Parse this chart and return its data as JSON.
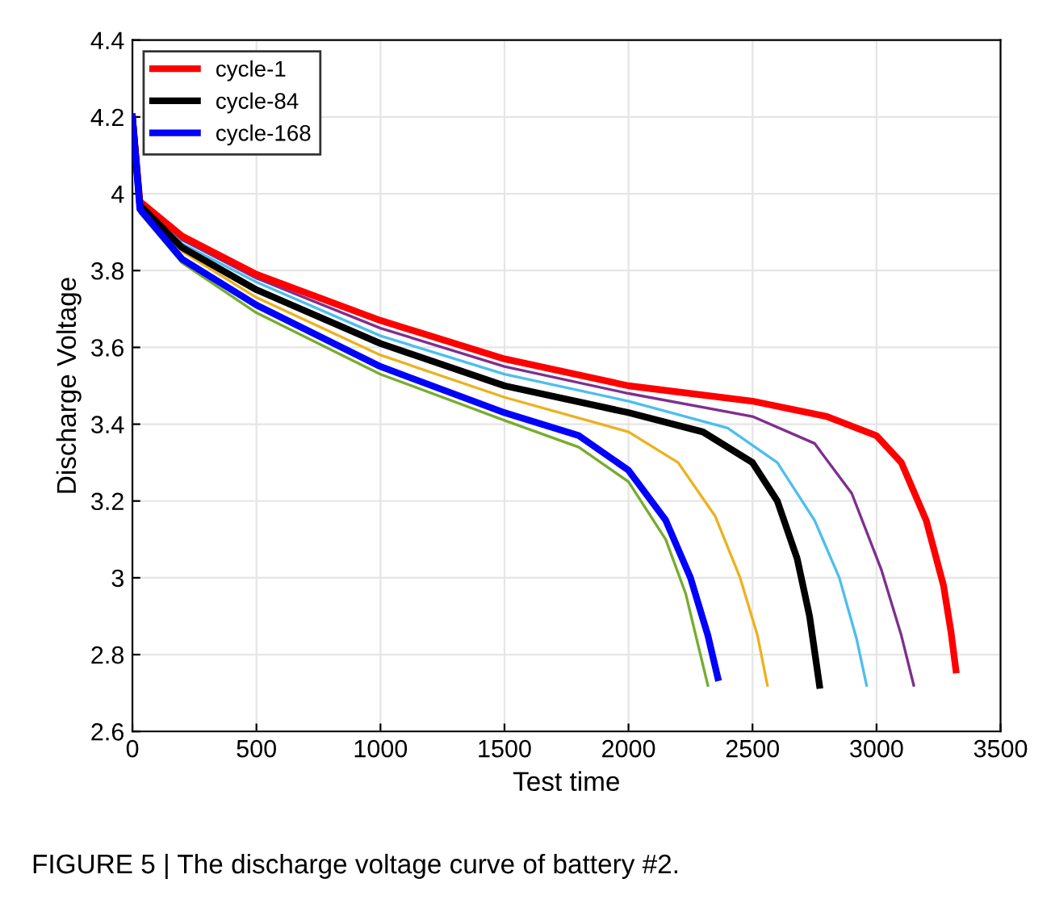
{
  "chart_data": {
    "type": "line",
    "xlabel": "Test time",
    "ylabel": "Discharge Voltage",
    "xlim": [
      0,
      3500
    ],
    "xticks": [
      0,
      500,
      1000,
      1500,
      2000,
      2500,
      3000,
      3500
    ],
    "ylim": [
      2.6,
      4.4
    ],
    "yticks": [
      2.6,
      2.8,
      3,
      3.2,
      3.4,
      3.6,
      3.8,
      4,
      4.2,
      4.4
    ],
    "grid": true,
    "legend": "top left",
    "line_style": "solid",
    "marker": "none",
    "annotations": [
      "FIGURE 5 | The discharge voltage curve of battery #2."
    ],
    "series": [
      {
        "color": "#77ac30",
        "x": [
          0,
          30,
          200,
          500,
          1000,
          1500,
          1800,
          2000,
          2150,
          2230,
          2290,
          2320
        ],
        "values": [
          4.2,
          3.95,
          3.82,
          3.69,
          3.53,
          3.41,
          3.34,
          3.25,
          3.1,
          2.96,
          2.8,
          2.72
        ]
      },
      {
        "color": "#edb120",
        "x": [
          0,
          30,
          200,
          500,
          1000,
          1500,
          2000,
          2200,
          2350,
          2450,
          2520,
          2560
        ],
        "values": [
          4.2,
          3.96,
          3.85,
          3.73,
          3.58,
          3.47,
          3.38,
          3.3,
          3.16,
          3.0,
          2.85,
          2.72
        ]
      },
      {
        "color": "#4dbeee",
        "x": [
          0,
          30,
          200,
          500,
          1000,
          1500,
          2000,
          2400,
          2600,
          2750,
          2850,
          2920,
          2960
        ],
        "values": [
          4.2,
          3.97,
          3.87,
          3.77,
          3.63,
          3.53,
          3.46,
          3.39,
          3.3,
          3.15,
          3.0,
          2.84,
          2.72
        ]
      },
      {
        "color": "#7e2f8e",
        "x": [
          0,
          30,
          200,
          500,
          1000,
          1500,
          2000,
          2500,
          2750,
          2900,
          3020,
          3100,
          3150
        ],
        "values": [
          4.2,
          3.98,
          3.88,
          3.78,
          3.65,
          3.55,
          3.48,
          3.42,
          3.35,
          3.22,
          3.02,
          2.85,
          2.72
        ]
      },
      {
        "name": "cycle-1",
        "color": "#ff0000",
        "x": [
          0,
          30,
          200,
          500,
          1000,
          1500,
          2000,
          2500,
          2800,
          3000,
          3100,
          3200,
          3270,
          3300,
          3320
        ],
        "values": [
          4.2,
          3.98,
          3.89,
          3.79,
          3.67,
          3.57,
          3.5,
          3.46,
          3.42,
          3.37,
          3.3,
          3.15,
          2.98,
          2.86,
          2.76
        ]
      },
      {
        "name": "cycle-84",
        "color": "#000000",
        "x": [
          0,
          30,
          200,
          500,
          1000,
          1500,
          2000,
          2300,
          2500,
          2600,
          2680,
          2730,
          2770
        ],
        "values": [
          4.2,
          3.97,
          3.86,
          3.75,
          3.61,
          3.5,
          3.43,
          3.38,
          3.3,
          3.2,
          3.05,
          2.9,
          2.72
        ]
      },
      {
        "name": "cycle-168",
        "color": "#0000ff",
        "x": [
          0,
          30,
          200,
          500,
          1000,
          1500,
          1800,
          2000,
          2150,
          2250,
          2320,
          2360
        ],
        "values": [
          4.2,
          3.96,
          3.83,
          3.71,
          3.55,
          3.43,
          3.37,
          3.28,
          3.15,
          3.0,
          2.85,
          2.74
        ]
      }
    ]
  }
}
